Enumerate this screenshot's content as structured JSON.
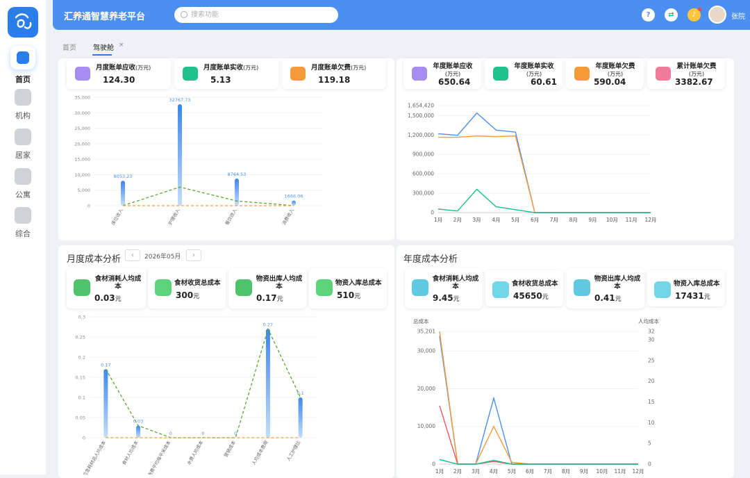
{
  "app": {
    "title": "汇养通智慧养老平台",
    "user_name": "张院"
  },
  "search": {
    "placeholder": "搜索功能"
  },
  "colors": {
    "primary": "#4b8ff0",
    "accent_orange": "#f59a3a",
    "green": "#12c08a",
    "dashed_green": "#52a82c"
  },
  "sidebar": {
    "items": [
      {
        "label": "首页",
        "icon": "home-icon",
        "active": true
      },
      {
        "label": "机构",
        "icon": "institution-icon"
      },
      {
        "label": "居家",
        "icon": "house-icon"
      },
      {
        "label": "公寓",
        "icon": "apartment-icon"
      },
      {
        "label": "综合",
        "icon": "stack-icon"
      }
    ]
  },
  "header_icons": [
    "question-icon",
    "exchange-icon",
    "bell-icon"
  ],
  "tabs": [
    {
      "label": "首页"
    },
    {
      "label": "驾驶舱",
      "active": true,
      "close": "×"
    }
  ],
  "monthly_bill": {
    "cards": [
      {
        "label": "月度账单应收",
        "unit": "(万元)",
        "value": "124.30",
        "icon": "receivable-icon"
      },
      {
        "label": "月度账单实收",
        "unit": "(万元)",
        "value": "5.13",
        "icon": "money-bag-icon"
      },
      {
        "label": "月度账单欠费",
        "unit": "(万元)",
        "value": "119.18",
        "icon": "arrears-icon"
      }
    ]
  },
  "yearly_bill": {
    "cards": [
      {
        "label": "年度账单应收",
        "unit": "(万元)",
        "value": "650.64",
        "icon": "receivable-icon"
      },
      {
        "label": "年度账单实收",
        "unit": "(万元)",
        "value": "60.61",
        "icon": "money-bag-icon"
      },
      {
        "label": "年度账单欠费",
        "unit": "(万元)",
        "value": "590.04",
        "icon": "arrears-icon"
      },
      {
        "label": "累计账单欠费",
        "unit": "(万元)",
        "value": "3382.67",
        "icon": "cumulative-icon"
      }
    ]
  },
  "monthly_cost": {
    "title": "月度成本分析",
    "month": "2026年05月",
    "prev": "‹",
    "next": "›",
    "cards": [
      {
        "label": "食材消耗人均成本",
        "value": "0.03",
        "unit": "元",
        "icon": "food-icon"
      },
      {
        "label": "食材收货总成本",
        "value": "300",
        "unit": "元",
        "icon": "basket-icon"
      },
      {
        "label": "物资出库人均成本",
        "value": "0.17",
        "unit": "元",
        "icon": "warehouse-out-icon"
      },
      {
        "label": "物资入库总成本",
        "value": "510",
        "unit": "元",
        "icon": "warehouse-in-icon"
      }
    ]
  },
  "yearly_cost": {
    "title": "年度成本分析",
    "cards": [
      {
        "label": "食材消耗人均成本",
        "value": "9.45",
        "unit": "元",
        "icon": "food-icon"
      },
      {
        "label": "食材收货总成本",
        "value": "45650",
        "unit": "元",
        "icon": "basket-icon"
      },
      {
        "label": "物资出库人均成本",
        "value": "0.41",
        "unit": "元",
        "icon": "warehouse-out-icon"
      },
      {
        "label": "物资入库总成本",
        "value": "17431",
        "unit": "元",
        "icon": "warehouse-in-icon"
      }
    ]
  },
  "chart_data": [
    {
      "type": "bar",
      "categories": [
        "床位收入",
        "护理收入",
        "餐饮收入",
        "消费收入"
      ],
      "values": [
        8053.23,
        32767.73,
        8764.53,
        1666.06
      ],
      "value_labels": [
        "8053.23",
        "32767.73",
        "8764.53",
        "1666.06"
      ],
      "lines": [
        {
          "style": "dashed",
          "color": "#52a82c",
          "values": [
            0,
            6000,
            1500,
            0
          ]
        },
        {
          "style": "dashed",
          "color": "#f59a3a",
          "values": [
            0,
            0,
            0,
            0
          ]
        }
      ],
      "yticks": [
        "35,000",
        "30,000",
        "25,000",
        "20,000",
        "15,000",
        "10,000",
        "5,000",
        "0"
      ],
      "ylim": [
        0,
        35000
      ]
    },
    {
      "type": "line",
      "categories": [
        "1月",
        "2月",
        "3月",
        "4月",
        "5月",
        "6月",
        "7月",
        "8月",
        "9月",
        "10月",
        "11月",
        "12月"
      ],
      "series": [
        {
          "color": "#4b8ff0",
          "values": [
            1220000,
            1195000,
            1540000,
            1275000,
            1245000,
            0,
            0,
            0,
            0,
            0,
            0,
            0
          ]
        },
        {
          "color": "#f59a3a",
          "values": [
            1165000,
            1165000,
            1185000,
            1175000,
            1185000,
            0,
            0,
            0,
            0,
            0,
            0,
            0
          ]
        },
        {
          "color": "#12c08a",
          "values": [
            55000,
            25000,
            360000,
            90000,
            45000,
            0,
            0,
            0,
            0,
            0,
            0,
            0
          ]
        }
      ],
      "yticks": [
        "1,654,420",
        "1,500,000",
        "1,200,000",
        "900,000",
        "600,000",
        "300,000",
        "0"
      ],
      "ylim": [
        0,
        1654420
      ]
    },
    {
      "type": "bar",
      "categories": [
        "应急耗材品人均成本",
        "食材人均成本",
        "电费平均每平米成本",
        "水费人均成本",
        "营销成本",
        "人均成本费用",
        "人工护理比"
      ],
      "values": [
        0.17,
        0.03,
        0,
        0,
        0,
        0.27,
        0.1
      ],
      "value_labels": [
        "0.17",
        "0.03",
        "0",
        "0",
        "0",
        "0.27",
        "0.1"
      ],
      "lines": [
        {
          "style": "dashed",
          "color": "#52a82c",
          "values": [
            0.17,
            0.03,
            0,
            0,
            0,
            0.27,
            0.1
          ]
        },
        {
          "style": "dashed",
          "color": "#f59a3a",
          "values": [
            0,
            0,
            0,
            0,
            0,
            0,
            0
          ]
        }
      ],
      "yticks": [
        "0.3",
        "0.25",
        "0.2",
        "0.15",
        "0.1",
        "0.05",
        "0"
      ],
      "ylim": [
        0,
        0.3
      ]
    },
    {
      "type": "line",
      "ylabel_left": "总成本",
      "ylabel_right": "人均成本",
      "categories": [
        "1月",
        "2月",
        "3月",
        "4月",
        "5月",
        "6月",
        "7月",
        "8月",
        "9月",
        "10月",
        "11月",
        "12月"
      ],
      "series": [
        {
          "color": "#4b8ff0",
          "axis": "left",
          "values": [
            34000,
            0,
            0,
            17500,
            0,
            0,
            0,
            0,
            0,
            0,
            0,
            0
          ]
        },
        {
          "color": "#f59a3a",
          "axis": "left",
          "values": [
            35201,
            0,
            0,
            10000,
            500,
            0,
            0,
            0,
            0,
            0,
            0,
            0
          ]
        },
        {
          "color": "#e55a5a",
          "axis": "left",
          "values": [
            15500,
            0,
            0,
            700,
            0,
            0,
            0,
            0,
            0,
            0,
            0,
            0
          ]
        },
        {
          "color": "#12c08a",
          "axis": "left",
          "values": [
            1200,
            0,
            0,
            1000,
            0,
            0,
            0,
            0,
            0,
            0,
            0,
            0
          ]
        }
      ],
      "yticks_left": [
        "35,201",
        "30,000",
        "20,000",
        "10,000",
        "0"
      ],
      "yticks_right": [
        "32",
        "30",
        "25",
        "20",
        "15",
        "10",
        "5",
        "0"
      ],
      "ylim": [
        0,
        35201
      ]
    }
  ]
}
